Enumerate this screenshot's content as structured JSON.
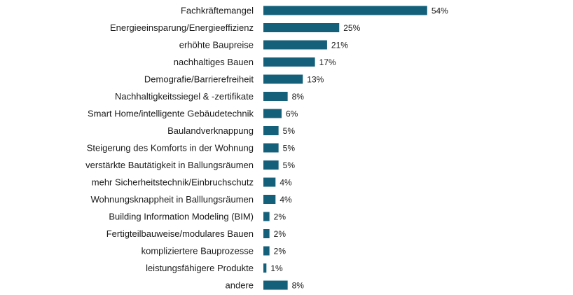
{
  "chart_data": {
    "type": "bar",
    "orientation": "horizontal",
    "title": "",
    "xlabel": "",
    "ylabel": "",
    "grid": false,
    "bar_color": "#14607a",
    "value_suffix": "%",
    "xlim": [
      0,
      54
    ],
    "categories": [
      "Fachkräftemangel",
      "Energieeinsparung/Energieeffizienz",
      "erhöhte Baupreise",
      "nachhaltiges Bauen",
      "Demografie/Barrierefreiheit",
      "Nachhaltigkeitssiegel & -zertifikate",
      "Smart Home/intelligente Gebäudetechnik",
      "Baulandverknappung",
      "Steigerung des Komforts in der Wohnung",
      "verstärkte Bautätigkeit in Ballungsräumen",
      "mehr Sicherheitstechnik/Einbruchschutz",
      "Wohnungsknappheit in Balllungsräumen",
      "Building Information Modeling (BIM)",
      "Fertigteilbauweise/modulares Bauen",
      "kompliziertere Bauprozesse",
      "leistungsfähigere Produkte",
      "andere"
    ],
    "values": [
      54,
      25,
      21,
      17,
      13,
      8,
      6,
      5,
      5,
      5,
      4,
      4,
      2,
      2,
      2,
      1,
      8
    ]
  }
}
